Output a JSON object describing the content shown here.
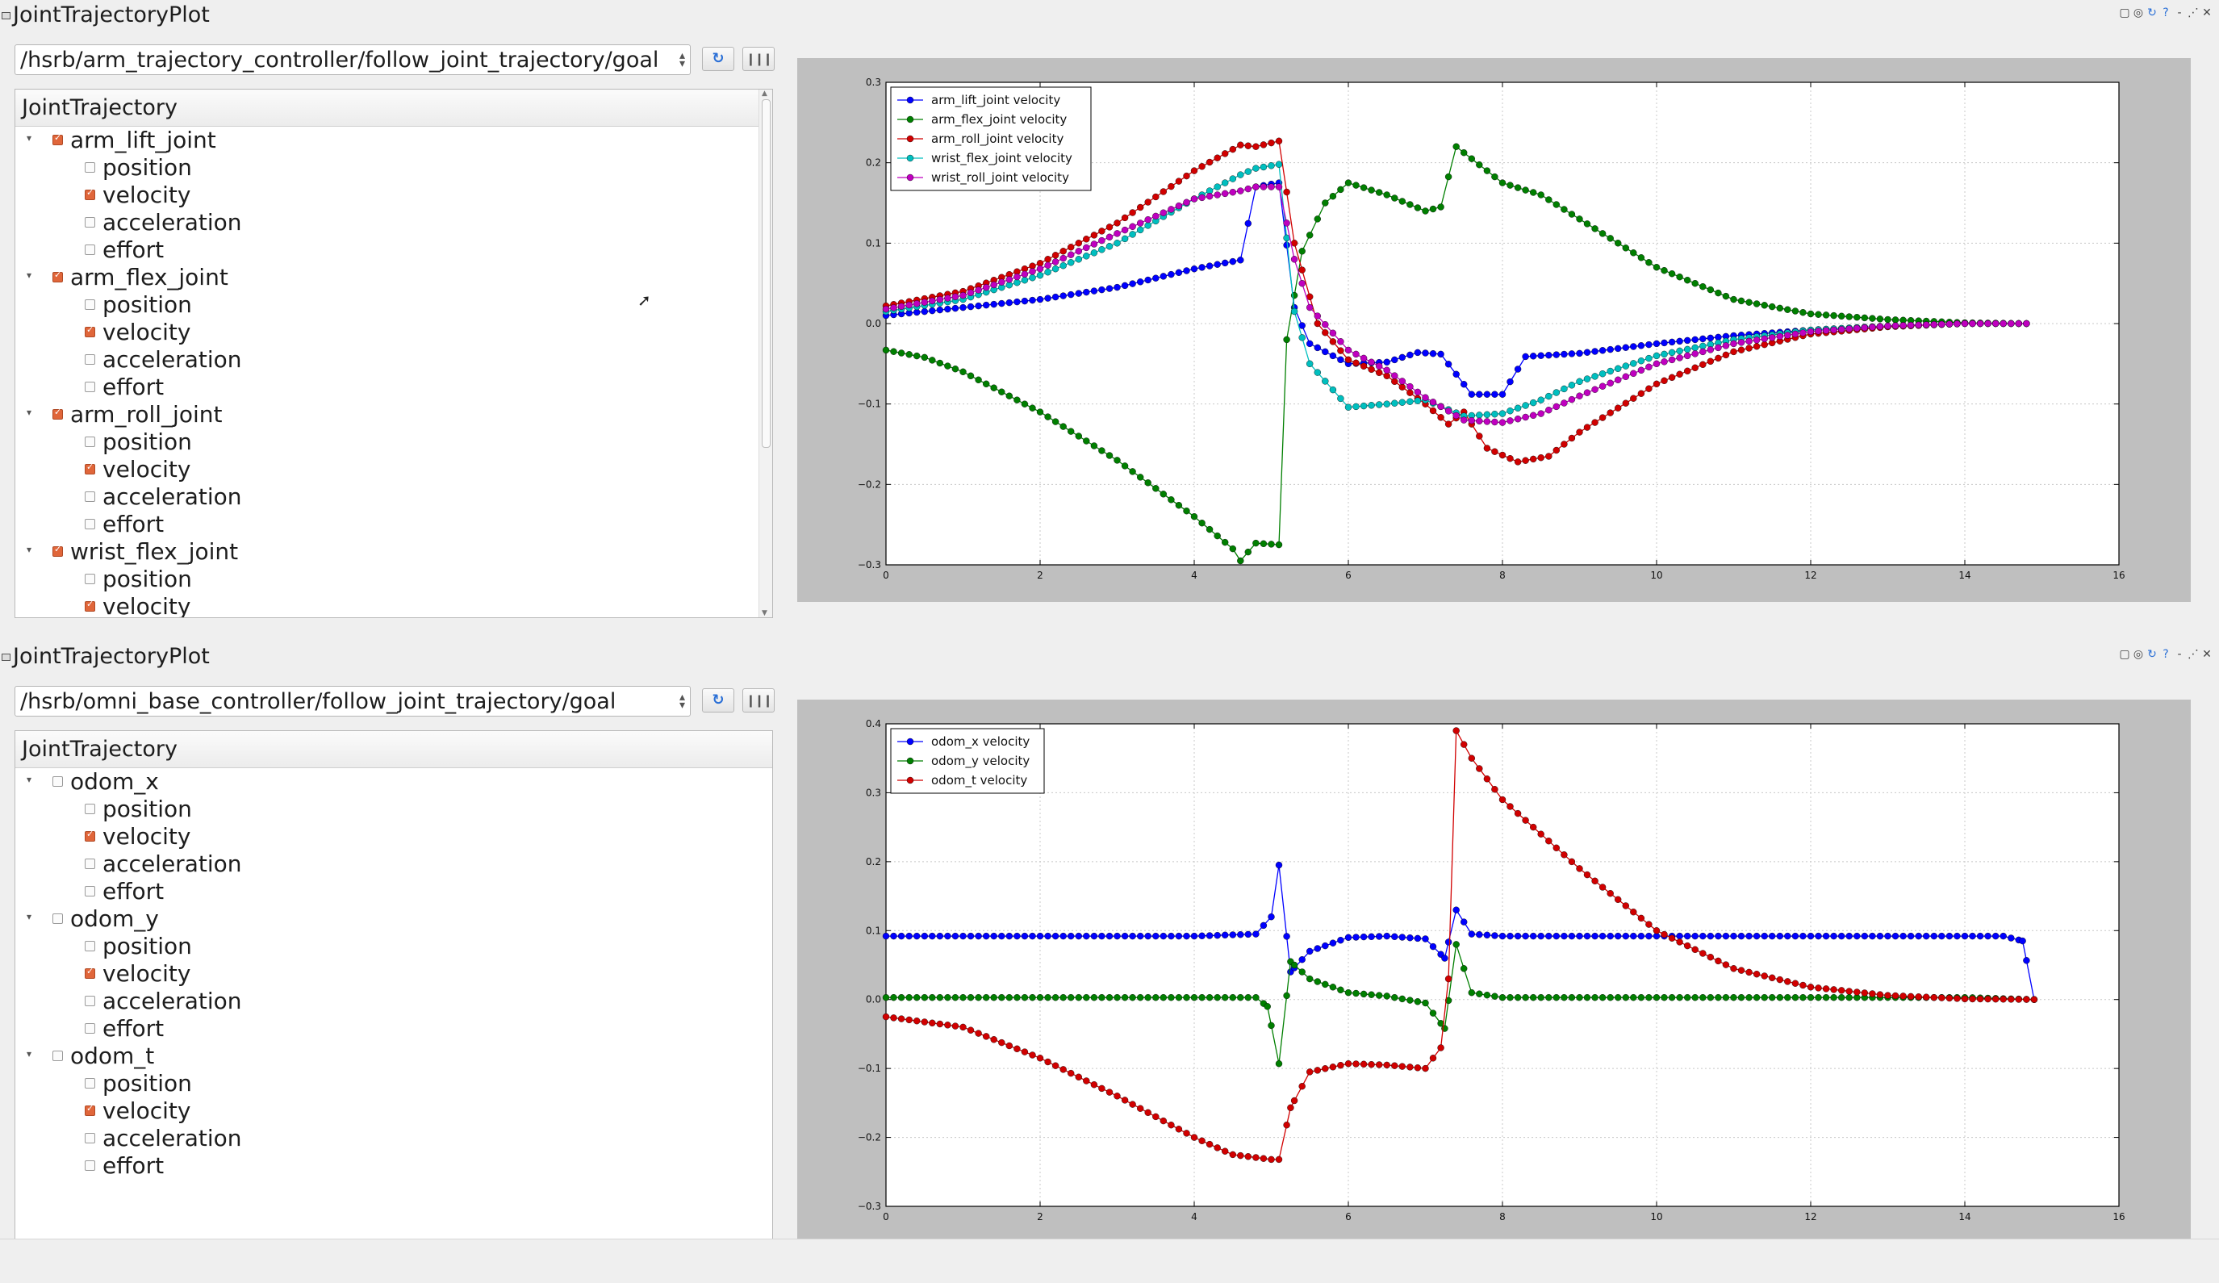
{
  "panels": [
    {
      "title": "JointTrajectoryPlot",
      "topic": "/hsrb/arm_trajectory_controller/follow_joint_trajectory/goal",
      "tree_header": "JointTrajectory",
      "tree": [
        {
          "name": "arm_lift_joint",
          "checked": true,
          "fields": [
            {
              "name": "position",
              "checked": false
            },
            {
              "name": "velocity",
              "checked": true
            },
            {
              "name": "acceleration",
              "checked": false
            },
            {
              "name": "effort",
              "checked": false
            }
          ]
        },
        {
          "name": "arm_flex_joint",
          "checked": true,
          "fields": [
            {
              "name": "position",
              "checked": false
            },
            {
              "name": "velocity",
              "checked": true
            },
            {
              "name": "acceleration",
              "checked": false
            },
            {
              "name": "effort",
              "checked": false
            }
          ]
        },
        {
          "name": "arm_roll_joint",
          "checked": true,
          "fields": [
            {
              "name": "position",
              "checked": false
            },
            {
              "name": "velocity",
              "checked": true
            },
            {
              "name": "acceleration",
              "checked": false
            },
            {
              "name": "effort",
              "checked": false
            }
          ]
        },
        {
          "name": "wrist_flex_joint",
          "checked": true,
          "fields": [
            {
              "name": "position",
              "checked": false
            },
            {
              "name": "velocity",
              "checked": true
            }
          ]
        }
      ],
      "chart_data": {
        "type": "line",
        "xlim": [
          0,
          16
        ],
        "ylim": [
          -0.3,
          0.3
        ],
        "xticks": [
          0,
          2,
          4,
          6,
          8,
          10,
          12,
          14,
          16
        ],
        "yticks": [
          -0.3,
          -0.2,
          -0.1,
          0.0,
          0.1,
          0.2,
          0.3
        ],
        "grid": true,
        "legend_position": "top-left",
        "series": [
          {
            "name": "arm_lift_joint velocity",
            "color": "#0000ff",
            "x": [
              0,
              1,
              2,
              3,
              4,
              4.6,
              4.8,
              5.1,
              5.3,
              5.5,
              6,
              6.5,
              6.9,
              7.2,
              7.6,
              8,
              8.3,
              9,
              10,
              11,
              12,
              13,
              14,
              14.8
            ],
            "y": [
              0.01,
              0.02,
              0.03,
              0.045,
              0.068,
              0.079,
              0.17,
              0.175,
              0.02,
              -0.025,
              -0.05,
              -0.048,
              -0.036,
              -0.038,
              -0.088,
              -0.088,
              -0.041,
              -0.037,
              -0.025,
              -0.015,
              -0.008,
              -0.003,
              0,
              0
            ]
          },
          {
            "name": "arm_flex_joint velocity",
            "color": "#007f00",
            "x": [
              0,
              0.5,
              1,
              2,
              3,
              4,
              4.5,
              4.6,
              4.8,
              5.1,
              5.2,
              5.4,
              5.7,
              6,
              6.5,
              7,
              7.2,
              7.4,
              7.6,
              8,
              8.5,
              9,
              10,
              11,
              12,
              13,
              14,
              14.8
            ],
            "y": [
              -0.033,
              -0.042,
              -0.06,
              -0.11,
              -0.17,
              -0.24,
              -0.28,
              -0.295,
              -0.273,
              -0.275,
              -0.02,
              0.09,
              0.15,
              0.175,
              0.16,
              0.14,
              0.145,
              0.22,
              0.205,
              0.175,
              0.16,
              0.13,
              0.07,
              0.03,
              0.012,
              0.005,
              0.001,
              0
            ]
          },
          {
            "name": "arm_roll_joint velocity",
            "color": "#d10000",
            "x": [
              0,
              1,
              2,
              3,
              4,
              4.6,
              4.8,
              5.1,
              5.3,
              5.6,
              6,
              6.5,
              7,
              7.3,
              7.5,
              7.8,
              8.2,
              8.6,
              9,
              10,
              11,
              12,
              13,
              14,
              14.8
            ],
            "y": [
              0.022,
              0.04,
              0.075,
              0.125,
              0.19,
              0.222,
              0.22,
              0.227,
              0.1,
              0.0,
              -0.045,
              -0.065,
              -0.1,
              -0.125,
              -0.11,
              -0.155,
              -0.172,
              -0.165,
              -0.135,
              -0.075,
              -0.035,
              -0.013,
              -0.004,
              0,
              0
            ]
          },
          {
            "name": "wrist_flex_joint velocity",
            "color": "#00bfbf",
            "x": [
              0,
              1,
              2,
              3,
              4,
              4.6,
              4.8,
              5.1,
              5.3,
              5.5,
              6,
              6.5,
              7,
              7.5,
              8,
              8.5,
              9,
              10,
              11,
              12,
              13,
              14,
              14.8
            ],
            "y": [
              0.015,
              0.03,
              0.06,
              0.1,
              0.155,
              0.185,
              0.193,
              0.198,
              0.015,
              -0.05,
              -0.104,
              -0.1,
              -0.095,
              -0.115,
              -0.112,
              -0.095,
              -0.072,
              -0.04,
              -0.02,
              -0.008,
              -0.003,
              0,
              0
            ]
          },
          {
            "name": "wrist_roll_joint velocity",
            "color": "#bf00bf",
            "x": [
              0,
              1,
              2,
              3,
              4,
              4.6,
              4.8,
              5.1,
              5.3,
              5.5,
              6,
              6.5,
              7,
              7.5,
              8,
              8.5,
              9,
              10,
              11,
              12,
              13,
              14,
              14.8
            ],
            "y": [
              0.018,
              0.035,
              0.068,
              0.112,
              0.155,
              0.165,
              0.17,
              0.17,
              0.08,
              0.02,
              -0.033,
              -0.058,
              -0.092,
              -0.12,
              -0.123,
              -0.112,
              -0.09,
              -0.05,
              -0.025,
              -0.01,
              -0.003,
              0,
              0
            ]
          }
        ]
      }
    },
    {
      "title": "JointTrajectoryPlot",
      "topic": "/hsrb/omni_base_controller/follow_joint_trajectory/goal",
      "tree_header": "JointTrajectory",
      "tree": [
        {
          "name": "odom_x",
          "checked": false,
          "fields": [
            {
              "name": "position",
              "checked": false
            },
            {
              "name": "velocity",
              "checked": true
            },
            {
              "name": "acceleration",
              "checked": false
            },
            {
              "name": "effort",
              "checked": false
            }
          ]
        },
        {
          "name": "odom_y",
          "checked": false,
          "fields": [
            {
              "name": "position",
              "checked": false
            },
            {
              "name": "velocity",
              "checked": true
            },
            {
              "name": "acceleration",
              "checked": false
            },
            {
              "name": "effort",
              "checked": false
            }
          ]
        },
        {
          "name": "odom_t",
          "checked": false,
          "fields": [
            {
              "name": "position",
              "checked": false
            },
            {
              "name": "velocity",
              "checked": true
            },
            {
              "name": "acceleration",
              "checked": false
            },
            {
              "name": "effort",
              "checked": false
            }
          ]
        }
      ],
      "chart_data": {
        "type": "line",
        "xlim": [
          0,
          16
        ],
        "ylim": [
          -0.3,
          0.4
        ],
        "xticks": [
          0,
          2,
          4,
          6,
          8,
          10,
          12,
          14,
          16
        ],
        "yticks": [
          -0.3,
          -0.2,
          -0.1,
          0.0,
          0.1,
          0.2,
          0.3,
          0.4
        ],
        "grid": true,
        "legend_position": "top-left",
        "series": [
          {
            "name": "odom_x velocity",
            "color": "#0000ff",
            "x": [
              0,
              1,
              2,
              3,
              4,
              4.8,
              5.0,
              5.1,
              5.25,
              5.5,
              6,
              6.5,
              7,
              7.25,
              7.4,
              7.6,
              8,
              9,
              10,
              11,
              12,
              13,
              14,
              14.5,
              14.75,
              14.9
            ],
            "y": [
              0.092,
              0.092,
              0.092,
              0.092,
              0.092,
              0.095,
              0.12,
              0.195,
              0.04,
              0.07,
              0.09,
              0.092,
              0.088,
              0.06,
              0.13,
              0.095,
              0.092,
              0.092,
              0.092,
              0.092,
              0.092,
              0.092,
              0.092,
              0.092,
              0.085,
              0.0
            ]
          },
          {
            "name": "odom_y velocity",
            "color": "#007f00",
            "x": [
              0,
              1,
              2,
              3,
              4,
              4.8,
              4.95,
              5.1,
              5.25,
              5.5,
              6,
              6.5,
              7,
              7.25,
              7.4,
              7.6,
              8,
              9,
              10,
              11,
              12,
              13,
              14,
              14.9
            ],
            "y": [
              0.003,
              0.003,
              0.003,
              0.003,
              0.003,
              0.003,
              -0.01,
              -0.093,
              0.055,
              0.03,
              0.01,
              0.005,
              -0.005,
              -0.042,
              0.08,
              0.01,
              0.003,
              0.003,
              0.003,
              0.003,
              0.003,
              0.003,
              0.003,
              0.0
            ]
          },
          {
            "name": "odom_t velocity",
            "color": "#d10000",
            "x": [
              0,
              1,
              2,
              3,
              4,
              4.5,
              5.0,
              5.1,
              5.25,
              5.5,
              6,
              6.5,
              7,
              7.2,
              7.3,
              7.4,
              7.6,
              8,
              9,
              10,
              11,
              12,
              13,
              14,
              14.9
            ],
            "y": [
              -0.025,
              -0.04,
              -0.085,
              -0.14,
              -0.2,
              -0.225,
              -0.232,
              -0.232,
              -0.157,
              -0.105,
              -0.093,
              -0.095,
              -0.1,
              -0.07,
              0.03,
              0.39,
              0.35,
              0.29,
              0.19,
              0.1,
              0.045,
              0.018,
              0.006,
              0.001,
              0.0
            ]
          }
        ]
      }
    }
  ]
}
